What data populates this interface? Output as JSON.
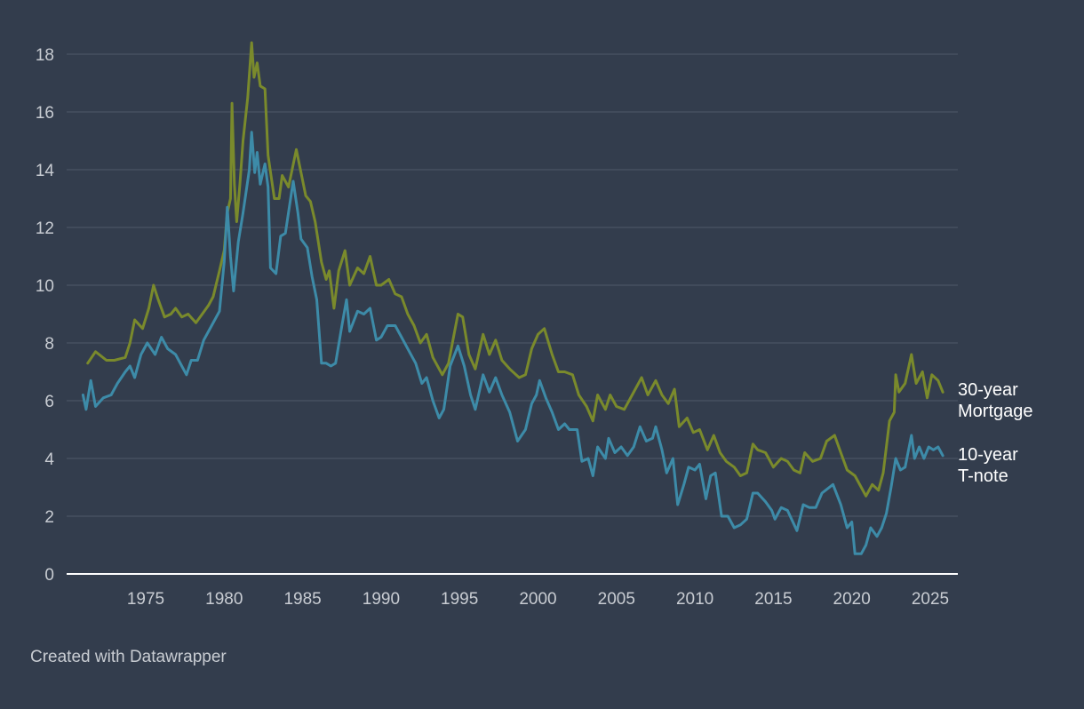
{
  "chart_data": {
    "type": "line",
    "title": "",
    "xlabel": "",
    "ylabel": "",
    "xlim": [
      1971,
      2026
    ],
    "ylim": [
      0,
      18.5
    ],
    "y_ticks": [
      "0",
      "2",
      "4",
      "6",
      "8",
      "10",
      "12",
      "14",
      "16",
      "18"
    ],
    "x_ticks": [
      "1975",
      "1980",
      "1985",
      "1990",
      "1995",
      "2000",
      "2005",
      "2010",
      "2015",
      "2020",
      "2025"
    ],
    "grid": true,
    "series": [
      {
        "name": "30-year Mortgage",
        "label_lines": [
          "30-year",
          "Mortgage"
        ],
        "color": "#7a8a2c",
        "points": [
          [
            1971.3,
            7.3
          ],
          [
            1971.8,
            7.7
          ],
          [
            1972.5,
            7.4
          ],
          [
            1973.0,
            7.4
          ],
          [
            1973.7,
            7.5
          ],
          [
            1974.0,
            8.0
          ],
          [
            1974.3,
            8.8
          ],
          [
            1974.8,
            8.5
          ],
          [
            1975.2,
            9.2
          ],
          [
            1975.5,
            10.0
          ],
          [
            1975.8,
            9.5
          ],
          [
            1976.2,
            8.9
          ],
          [
            1976.6,
            9.0
          ],
          [
            1976.9,
            9.2
          ],
          [
            1977.3,
            8.9
          ],
          [
            1977.7,
            9.0
          ],
          [
            1978.2,
            8.7
          ],
          [
            1978.6,
            9.0
          ],
          [
            1979.0,
            9.3
          ],
          [
            1979.3,
            9.6
          ],
          [
            1979.7,
            10.5
          ],
          [
            1980.0,
            11.2
          ],
          [
            1980.2,
            12.5
          ],
          [
            1980.4,
            13.0
          ],
          [
            1980.5,
            16.3
          ],
          [
            1980.65,
            13.5
          ],
          [
            1980.8,
            12.2
          ],
          [
            1981.0,
            13.5
          ],
          [
            1981.2,
            15.0
          ],
          [
            1981.5,
            16.5
          ],
          [
            1981.75,
            18.4
          ],
          [
            1981.9,
            17.2
          ],
          [
            1982.1,
            17.7
          ],
          [
            1982.3,
            16.9
          ],
          [
            1982.6,
            16.8
          ],
          [
            1982.8,
            14.5
          ],
          [
            1983.2,
            13.0
          ],
          [
            1983.5,
            13.0
          ],
          [
            1983.7,
            13.8
          ],
          [
            1984.1,
            13.4
          ],
          [
            1984.6,
            14.7
          ],
          [
            1984.9,
            13.9
          ],
          [
            1985.2,
            13.1
          ],
          [
            1985.5,
            12.9
          ],
          [
            1985.8,
            12.2
          ],
          [
            1986.2,
            10.8
          ],
          [
            1986.5,
            10.2
          ],
          [
            1986.7,
            10.5
          ],
          [
            1987.0,
            9.2
          ],
          [
            1987.3,
            10.5
          ],
          [
            1987.7,
            11.2
          ],
          [
            1988.0,
            10.0
          ],
          [
            1988.5,
            10.6
          ],
          [
            1988.9,
            10.4
          ],
          [
            1989.3,
            11.0
          ],
          [
            1989.7,
            10.0
          ],
          [
            1990.0,
            10.0
          ],
          [
            1990.5,
            10.2
          ],
          [
            1990.9,
            9.7
          ],
          [
            1991.3,
            9.6
          ],
          [
            1991.7,
            9.0
          ],
          [
            1992.1,
            8.6
          ],
          [
            1992.5,
            8.0
          ],
          [
            1992.9,
            8.3
          ],
          [
            1993.3,
            7.5
          ],
          [
            1993.9,
            6.9
          ],
          [
            1994.3,
            7.3
          ],
          [
            1994.9,
            9.0
          ],
          [
            1995.2,
            8.9
          ],
          [
            1995.6,
            7.6
          ],
          [
            1996.0,
            7.1
          ],
          [
            1996.5,
            8.3
          ],
          [
            1996.9,
            7.6
          ],
          [
            1997.3,
            8.1
          ],
          [
            1997.7,
            7.4
          ],
          [
            1998.2,
            7.1
          ],
          [
            1998.8,
            6.8
          ],
          [
            1999.2,
            6.9
          ],
          [
            1999.6,
            7.8
          ],
          [
            2000.0,
            8.3
          ],
          [
            2000.4,
            8.5
          ],
          [
            2000.9,
            7.6
          ],
          [
            2001.3,
            7.0
          ],
          [
            2001.7,
            7.0
          ],
          [
            2002.2,
            6.9
          ],
          [
            2002.6,
            6.2
          ],
          [
            2003.1,
            5.8
          ],
          [
            2003.5,
            5.3
          ],
          [
            2003.8,
            6.2
          ],
          [
            2004.3,
            5.7
          ],
          [
            2004.6,
            6.2
          ],
          [
            2005.0,
            5.8
          ],
          [
            2005.5,
            5.7
          ],
          [
            2006.0,
            6.2
          ],
          [
            2006.6,
            6.8
          ],
          [
            2007.0,
            6.2
          ],
          [
            2007.5,
            6.7
          ],
          [
            2007.9,
            6.2
          ],
          [
            2008.3,
            5.9
          ],
          [
            2008.7,
            6.4
          ],
          [
            2009.0,
            5.1
          ],
          [
            2009.5,
            5.4
          ],
          [
            2009.9,
            4.9
          ],
          [
            2010.3,
            5.0
          ],
          [
            2010.8,
            4.3
          ],
          [
            2011.2,
            4.8
          ],
          [
            2011.6,
            4.2
          ],
          [
            2012.0,
            3.9
          ],
          [
            2012.5,
            3.7
          ],
          [
            2012.9,
            3.4
          ],
          [
            2013.3,
            3.5
          ],
          [
            2013.7,
            4.5
          ],
          [
            2014.0,
            4.3
          ],
          [
            2014.5,
            4.2
          ],
          [
            2015.0,
            3.7
          ],
          [
            2015.5,
            4.0
          ],
          [
            2015.9,
            3.9
          ],
          [
            2016.3,
            3.6
          ],
          [
            2016.7,
            3.5
          ],
          [
            2017.0,
            4.2
          ],
          [
            2017.5,
            3.9
          ],
          [
            2018.0,
            4.0
          ],
          [
            2018.4,
            4.6
          ],
          [
            2018.9,
            4.8
          ],
          [
            2019.3,
            4.2
          ],
          [
            2019.7,
            3.6
          ],
          [
            2020.2,
            3.4
          ],
          [
            2020.6,
            3.0
          ],
          [
            2020.9,
            2.7
          ],
          [
            2021.3,
            3.1
          ],
          [
            2021.7,
            2.9
          ],
          [
            2022.0,
            3.5
          ],
          [
            2022.4,
            5.3
          ],
          [
            2022.7,
            5.6
          ],
          [
            2022.8,
            6.9
          ],
          [
            2023.0,
            6.3
          ],
          [
            2023.4,
            6.6
          ],
          [
            2023.8,
            7.6
          ],
          [
            2024.1,
            6.6
          ],
          [
            2024.5,
            7.0
          ],
          [
            2024.8,
            6.1
          ],
          [
            2025.1,
            6.9
          ],
          [
            2025.5,
            6.7
          ],
          [
            2025.8,
            6.3
          ]
        ]
      },
      {
        "name": "10-year T-note",
        "label_lines": [
          "10-year",
          "T-note"
        ],
        "color": "#3d8ba8",
        "points": [
          [
            1971.0,
            6.2
          ],
          [
            1971.2,
            5.7
          ],
          [
            1971.5,
            6.7
          ],
          [
            1971.8,
            5.8
          ],
          [
            1972.3,
            6.1
          ],
          [
            1972.8,
            6.2
          ],
          [
            1973.2,
            6.6
          ],
          [
            1973.7,
            7.0
          ],
          [
            1974.0,
            7.2
          ],
          [
            1974.3,
            6.8
          ],
          [
            1974.7,
            7.6
          ],
          [
            1975.1,
            8.0
          ],
          [
            1975.6,
            7.6
          ],
          [
            1976.0,
            8.2
          ],
          [
            1976.4,
            7.8
          ],
          [
            1976.9,
            7.6
          ],
          [
            1977.3,
            7.2
          ],
          [
            1977.6,
            6.9
          ],
          [
            1977.9,
            7.4
          ],
          [
            1978.3,
            7.4
          ],
          [
            1978.7,
            8.1
          ],
          [
            1979.2,
            8.6
          ],
          [
            1979.7,
            9.1
          ],
          [
            1980.0,
            10.8
          ],
          [
            1980.2,
            12.7
          ],
          [
            1980.4,
            11.0
          ],
          [
            1980.6,
            9.8
          ],
          [
            1980.9,
            11.5
          ],
          [
            1981.2,
            12.5
          ],
          [
            1981.6,
            14.0
          ],
          [
            1981.75,
            15.3
          ],
          [
            1981.95,
            13.9
          ],
          [
            1982.1,
            14.6
          ],
          [
            1982.3,
            13.5
          ],
          [
            1982.6,
            14.2
          ],
          [
            1982.8,
            13.4
          ],
          [
            1982.95,
            10.6
          ],
          [
            1983.3,
            10.4
          ],
          [
            1983.6,
            11.7
          ],
          [
            1983.9,
            11.8
          ],
          [
            1984.4,
            13.6
          ],
          [
            1984.7,
            12.5
          ],
          [
            1984.9,
            11.6
          ],
          [
            1985.3,
            11.3
          ],
          [
            1985.6,
            10.3
          ],
          [
            1985.9,
            9.5
          ],
          [
            1986.2,
            7.3
          ],
          [
            1986.5,
            7.3
          ],
          [
            1986.8,
            7.2
          ],
          [
            1987.1,
            7.3
          ],
          [
            1987.5,
            8.6
          ],
          [
            1987.8,
            9.5
          ],
          [
            1988.0,
            8.4
          ],
          [
            1988.5,
            9.1
          ],
          [
            1988.9,
            9.0
          ],
          [
            1989.3,
            9.2
          ],
          [
            1989.7,
            8.1
          ],
          [
            1990.0,
            8.2
          ],
          [
            1990.4,
            8.6
          ],
          [
            1990.9,
            8.6
          ],
          [
            1991.3,
            8.2
          ],
          [
            1991.8,
            7.7
          ],
          [
            1992.2,
            7.3
          ],
          [
            1992.6,
            6.6
          ],
          [
            1992.9,
            6.8
          ],
          [
            1993.3,
            6.0
          ],
          [
            1993.7,
            5.4
          ],
          [
            1994.0,
            5.7
          ],
          [
            1994.4,
            7.2
          ],
          [
            1994.9,
            7.9
          ],
          [
            1995.3,
            7.2
          ],
          [
            1995.7,
            6.2
          ],
          [
            1996.0,
            5.7
          ],
          [
            1996.5,
            6.9
          ],
          [
            1996.9,
            6.3
          ],
          [
            1997.3,
            6.8
          ],
          [
            1997.7,
            6.2
          ],
          [
            1998.2,
            5.6
          ],
          [
            1998.7,
            4.6
          ],
          [
            1999.2,
            5.0
          ],
          [
            1999.6,
            5.9
          ],
          [
            1999.9,
            6.2
          ],
          [
            2000.1,
            6.7
          ],
          [
            2000.5,
            6.1
          ],
          [
            2000.9,
            5.6
          ],
          [
            2001.3,
            5.0
          ],
          [
            2001.7,
            5.2
          ],
          [
            2002.0,
            5.0
          ],
          [
            2002.5,
            5.0
          ],
          [
            2002.8,
            3.9
          ],
          [
            2003.2,
            4.0
          ],
          [
            2003.5,
            3.4
          ],
          [
            2003.8,
            4.4
          ],
          [
            2004.3,
            4.0
          ],
          [
            2004.5,
            4.7
          ],
          [
            2004.9,
            4.2
          ],
          [
            2005.3,
            4.4
          ],
          [
            2005.7,
            4.1
          ],
          [
            2006.1,
            4.4
          ],
          [
            2006.5,
            5.1
          ],
          [
            2006.9,
            4.6
          ],
          [
            2007.3,
            4.7
          ],
          [
            2007.5,
            5.1
          ],
          [
            2007.9,
            4.3
          ],
          [
            2008.2,
            3.5
          ],
          [
            2008.6,
            4.0
          ],
          [
            2008.9,
            2.4
          ],
          [
            2009.3,
            3.1
          ],
          [
            2009.6,
            3.7
          ],
          [
            2010.0,
            3.6
          ],
          [
            2010.3,
            3.8
          ],
          [
            2010.7,
            2.6
          ],
          [
            2011.0,
            3.4
          ],
          [
            2011.3,
            3.5
          ],
          [
            2011.7,
            2.0
          ],
          [
            2012.1,
            2.0
          ],
          [
            2012.5,
            1.6
          ],
          [
            2012.9,
            1.7
          ],
          [
            2013.3,
            1.9
          ],
          [
            2013.7,
            2.8
          ],
          [
            2014.0,
            2.8
          ],
          [
            2014.5,
            2.5
          ],
          [
            2014.9,
            2.2
          ],
          [
            2015.1,
            1.9
          ],
          [
            2015.5,
            2.3
          ],
          [
            2015.9,
            2.2
          ],
          [
            2016.5,
            1.5
          ],
          [
            2016.9,
            2.4
          ],
          [
            2017.3,
            2.3
          ],
          [
            2017.7,
            2.3
          ],
          [
            2018.1,
            2.8
          ],
          [
            2018.8,
            3.1
          ],
          [
            2019.3,
            2.4
          ],
          [
            2019.7,
            1.6
          ],
          [
            2020.0,
            1.8
          ],
          [
            2020.2,
            0.7
          ],
          [
            2020.6,
            0.7
          ],
          [
            2020.9,
            1.0
          ],
          [
            2021.2,
            1.6
          ],
          [
            2021.6,
            1.3
          ],
          [
            2021.9,
            1.6
          ],
          [
            2022.2,
            2.1
          ],
          [
            2022.5,
            3.0
          ],
          [
            2022.8,
            4.0
          ],
          [
            2023.1,
            3.6
          ],
          [
            2023.4,
            3.7
          ],
          [
            2023.8,
            4.8
          ],
          [
            2024.0,
            4.0
          ],
          [
            2024.3,
            4.4
          ],
          [
            2024.6,
            4.0
          ],
          [
            2024.9,
            4.4
          ],
          [
            2025.2,
            4.3
          ],
          [
            2025.5,
            4.4
          ],
          [
            2025.8,
            4.1
          ]
        ]
      }
    ]
  },
  "credit": "Created with Datawrapper"
}
